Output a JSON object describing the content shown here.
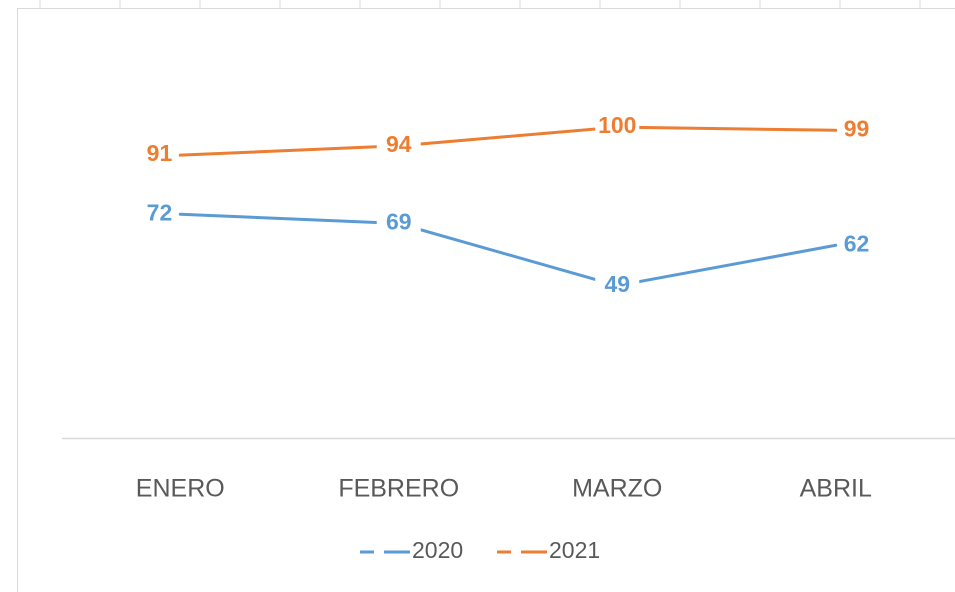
{
  "chart_data": {
    "type": "line",
    "categories": [
      "ENERO",
      "FEBRERO",
      "MARZO",
      "ABRIL"
    ],
    "series": [
      {
        "name": "2020",
        "color": "#5b9bd5",
        "values": [
          72,
          69,
          49,
          62
        ]
      },
      {
        "name": "2021",
        "color": "#ed7d31",
        "values": [
          91,
          94,
          100,
          99
        ]
      }
    ],
    "ylim": [
      0,
      120
    ]
  }
}
